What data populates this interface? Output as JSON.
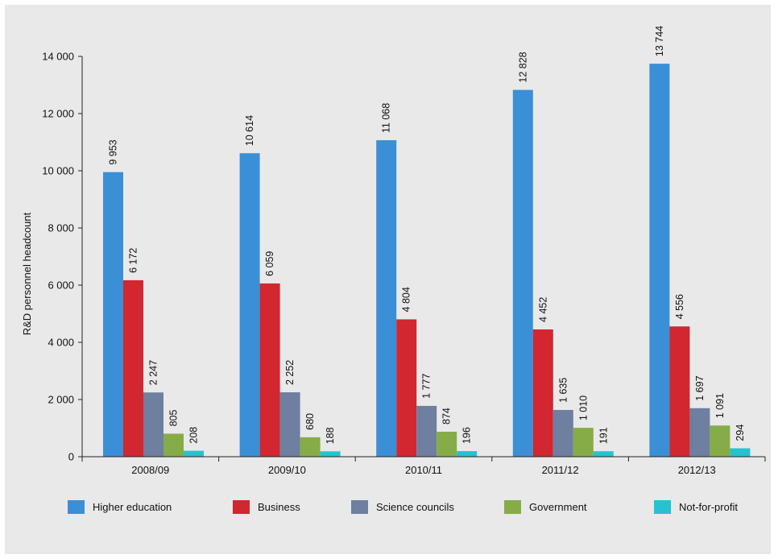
{
  "chart_data": {
    "type": "bar",
    "title": "",
    "xlabel": "",
    "ylabel": "R&D personnel headcount",
    "ylim": [
      0,
      14000
    ],
    "yticks": [
      0,
      2000,
      4000,
      6000,
      8000,
      10000,
      12000,
      14000
    ],
    "ytick_labels": [
      "0",
      "2 000",
      "4 000",
      "6 000",
      "8 000",
      "10 000",
      "12 000",
      "14 000"
    ],
    "categories": [
      "2008/09",
      "2009/10",
      "2010/11",
      "2011/12",
      "2012/13"
    ],
    "series": [
      {
        "name": "Higher education",
        "color": "#3b8fd6",
        "values": [
          9953,
          10614,
          11068,
          12828,
          13744
        ],
        "labels": [
          "9 953",
          "10 614",
          "11 068",
          "12 828",
          "13 744"
        ]
      },
      {
        "name": "Business",
        "color": "#d22630",
        "values": [
          6172,
          6059,
          4804,
          4452,
          4556
        ],
        "labels": [
          "6 172",
          "6 059",
          "4 804",
          "4 452",
          "4 556"
        ]
      },
      {
        "name": "Science councils",
        "color": "#6e7fa0",
        "values": [
          2247,
          2252,
          1777,
          1635,
          1697
        ],
        "labels": [
          "2 247",
          "2 252",
          "1 777",
          "1 635",
          "1 697"
        ]
      },
      {
        "name": "Government",
        "color": "#86ac47",
        "values": [
          805,
          680,
          874,
          1010,
          1091
        ],
        "labels": [
          "805",
          "680",
          "874",
          "1 010",
          "1 091"
        ]
      },
      {
        "name": "Not-for-profit",
        "color": "#27c2cf",
        "values": [
          208,
          188,
          196,
          191,
          294
        ],
        "labels": [
          "208",
          "188",
          "196",
          "191",
          "294"
        ]
      }
    ],
    "grid": false,
    "legend_position": "bottom"
  }
}
